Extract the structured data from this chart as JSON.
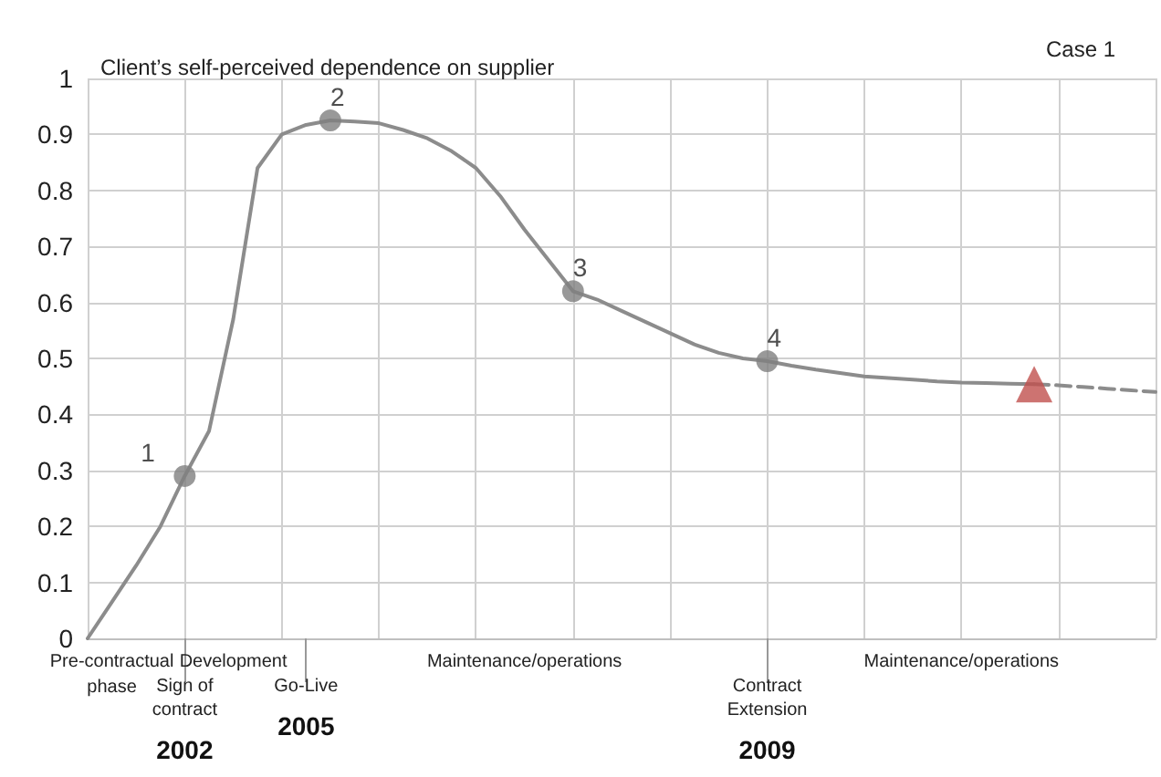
{
  "chart_data": {
    "type": "line",
    "title": "Client’s self-perceived dependence on supplier",
    "subtitle": "Case 1",
    "categories": [
      null,
      "Pre-contractual\nphase",
      null,
      null,
      "Sign of\ncontract\n\n2002",
      null,
      "Development",
      null,
      null,
      "Go-Live\n\n2005",
      null,
      null,
      null,
      null,
      null,
      null,
      null,
      null,
      "Maintenance/operations",
      null,
      null,
      null,
      null,
      null,
      null,
      null,
      null,
      null,
      "Contract\nExtension\n\n2009",
      null,
      null,
      null,
      null,
      null,
      null,
      null,
      "Maintenance/operations",
      null,
      null,
      null,
      null,
      null,
      null,
      null,
      null
    ],
    "ylim": [
      0,
      1
    ],
    "yticks": [
      0,
      0.1,
      0.2,
      0.3,
      0.4,
      0.5,
      0.6,
      0.7,
      0.8,
      0.9,
      1
    ],
    "grid": true,
    "legend": false,
    "series": [
      {
        "color": "#8c8c8c",
        "marker": "none",
        "line_style": "solid",
        "values": [
          0,
          0.065,
          0.13,
          0.2,
          0.29,
          0.37,
          0.57,
          0.84,
          0.9,
          0.917,
          0.925,
          0.923,
          0.92,
          0.908,
          0.893,
          0.87,
          0.84,
          0.79,
          0.73,
          0.675,
          0.62,
          0.605,
          0.585,
          0.565,
          0.545,
          0.525,
          0.51,
          0.5,
          0.495,
          0.487,
          0.48,
          0.474,
          0.468,
          0.465,
          0.462,
          0.459,
          0.457,
          0.456,
          0.455,
          0.454,
          null,
          null,
          null,
          null,
          null
        ]
      },
      {
        "color": "#8c8c8c",
        "marker": "none",
        "line_style": "dashed",
        "values": [
          null,
          null,
          null,
          null,
          null,
          null,
          null,
          null,
          null,
          null,
          null,
          null,
          null,
          null,
          null,
          null,
          null,
          null,
          null,
          null,
          null,
          null,
          null,
          null,
          null,
          null,
          null,
          null,
          null,
          null,
          null,
          null,
          null,
          null,
          null,
          null,
          null,
          null,
          null,
          0.454,
          0.452,
          0.449,
          0.446,
          0.443,
          0.44
        ]
      },
      {
        "type": "scatter",
        "name": "1",
        "color": "#7f7f7f",
        "marker": "circle",
        "values": [
          null,
          null,
          null,
          null,
          0.29,
          null,
          null,
          null,
          null,
          null,
          null,
          null,
          null,
          null,
          null,
          null,
          null,
          null,
          null,
          null,
          null,
          null,
          null,
          null,
          null,
          null,
          null,
          null,
          null,
          null,
          null,
          null,
          null,
          null,
          null,
          null,
          null,
          null,
          null,
          null,
          null,
          null,
          null,
          null,
          null
        ]
      },
      {
        "type": "scatter",
        "name": "2",
        "color": "#7f7f7f",
        "marker": "circle",
        "values": [
          null,
          null,
          null,
          null,
          null,
          null,
          null,
          null,
          null,
          null,
          0.925,
          null,
          null,
          null,
          null,
          null,
          null,
          null,
          null,
          null,
          null,
          null,
          null,
          null,
          null,
          null,
          null,
          null,
          null,
          null,
          null,
          null,
          null,
          null,
          null,
          null,
          null,
          null,
          null,
          null,
          null,
          null,
          null,
          null,
          null
        ]
      },
      {
        "type": "scatter",
        "name": "3",
        "color": "#7f7f7f",
        "marker": "circle",
        "values": [
          null,
          null,
          null,
          null,
          null,
          null,
          null,
          null,
          null,
          null,
          null,
          null,
          null,
          null,
          null,
          null,
          null,
          null,
          null,
          null,
          0.62,
          null,
          null,
          null,
          null,
          null,
          null,
          null,
          null,
          null,
          null,
          null,
          null,
          null,
          null,
          null,
          null,
          null,
          null,
          null,
          null,
          null,
          null,
          null,
          null
        ]
      },
      {
        "type": "scatter",
        "name": "4",
        "color": "#7f7f7f",
        "marker": "circle",
        "values": [
          null,
          null,
          null,
          null,
          null,
          null,
          null,
          null,
          null,
          null,
          null,
          null,
          null,
          null,
          null,
          null,
          null,
          null,
          null,
          null,
          null,
          null,
          null,
          null,
          null,
          null,
          null,
          null,
          0.495,
          null,
          null,
          null,
          null,
          null,
          null,
          null,
          null,
          null,
          null,
          null,
          null,
          null,
          null,
          null,
          null
        ]
      },
      {
        "type": "scatter",
        "color": "#c0504d",
        "marker": "triangle",
        "values": [
          null,
          null,
          null,
          null,
          null,
          null,
          null,
          null,
          null,
          null,
          null,
          null,
          null,
          null,
          null,
          null,
          null,
          null,
          null,
          null,
          null,
          null,
          null,
          null,
          null,
          null,
          null,
          null,
          null,
          null,
          null,
          null,
          null,
          null,
          null,
          null,
          null,
          null,
          null,
          0.454,
          null,
          null,
          null,
          null,
          null
        ]
      }
    ]
  }
}
